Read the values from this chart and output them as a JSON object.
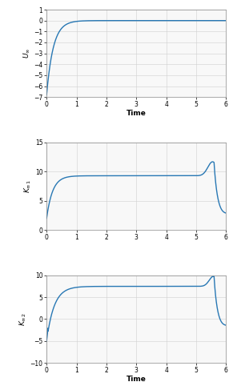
{
  "background_color": "#ffffff",
  "axes_bg": "#f8f8f8",
  "line_color": "#2878b4",
  "line_width": 1.0,
  "plot1": {
    "ylabel": "$U_{\\infty}$",
    "xlabel": "Time",
    "xlim": [
      0,
      6
    ],
    "ylim": [
      -7,
      1
    ],
    "yticks": [
      1,
      0,
      -1,
      -2,
      -3,
      -4,
      -5,
      -6,
      -7
    ],
    "xticks": [
      0,
      1,
      2,
      3,
      4,
      5,
      6
    ]
  },
  "plot2": {
    "ylabel": "$K_{\\infty 1}$",
    "xlabel": "",
    "xlim": [
      0,
      6
    ],
    "ylim": [
      0,
      15
    ],
    "yticks": [
      0,
      5,
      10,
      15
    ],
    "xticks": [
      0,
      1,
      2,
      3,
      4,
      5,
      6
    ]
  },
  "plot3": {
    "ylabel": "$K_{\\infty 2}$",
    "xlabel": "Time",
    "xlim": [
      0,
      6
    ],
    "ylim": [
      -10,
      10
    ],
    "yticks": [
      -10,
      -5,
      0,
      5,
      10
    ],
    "xticks": [
      0,
      1,
      2,
      3,
      4,
      5,
      6
    ]
  }
}
